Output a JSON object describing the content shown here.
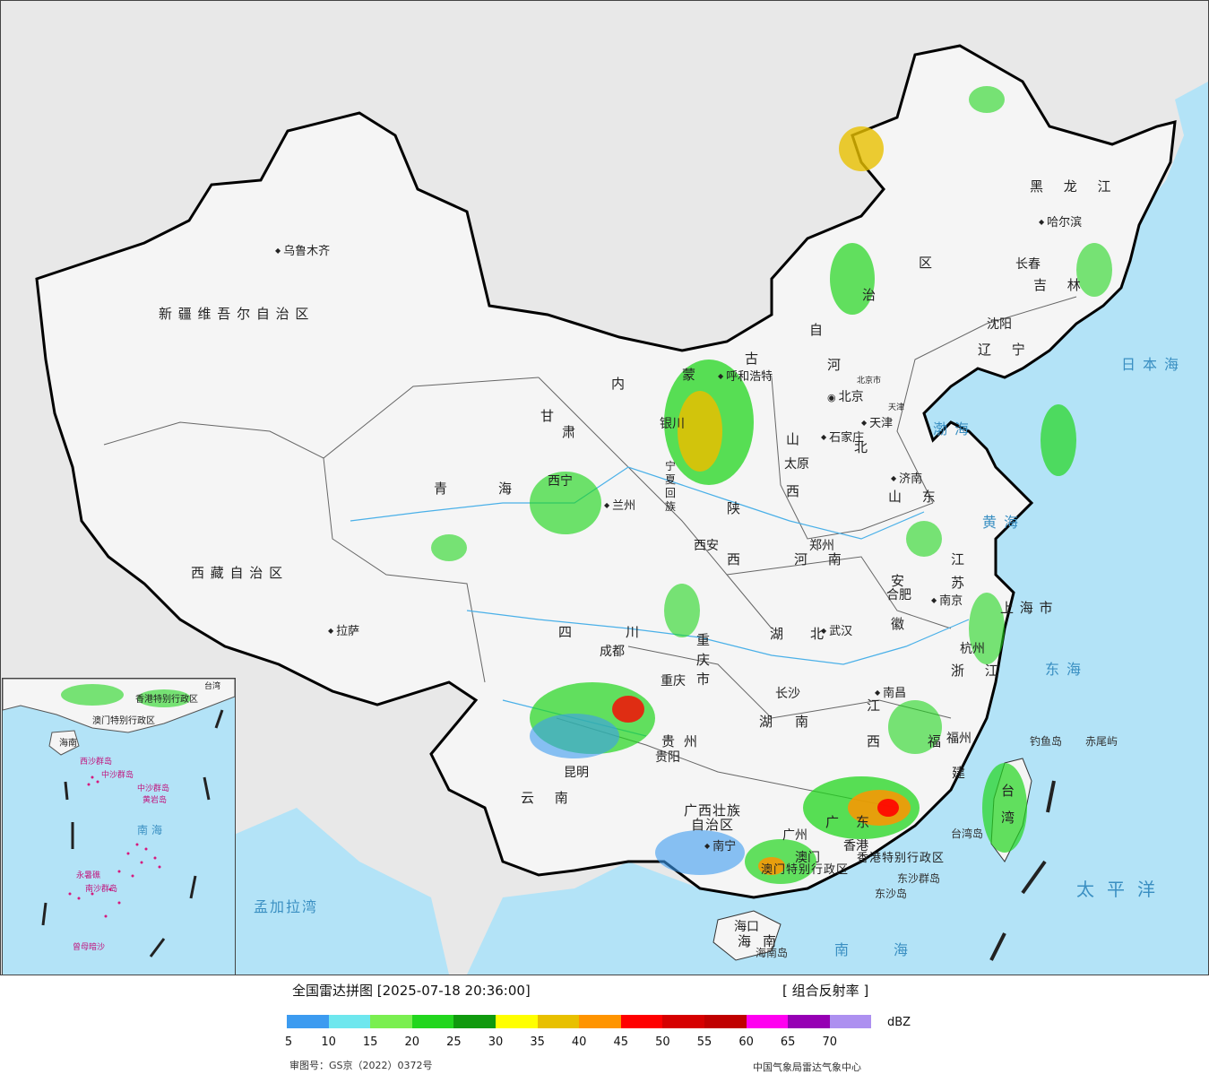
{
  "cities": [
    {
      "id": "urumqi",
      "name": "乌鲁木齐"
    },
    {
      "id": "lhasa",
      "name": "拉萨"
    },
    {
      "id": "hohhot",
      "name": "呼和浩特"
    },
    {
      "id": "beijing",
      "name": "北京"
    },
    {
      "id": "beijing-city",
      "name": "北京市"
    },
    {
      "id": "tianjin",
      "name": "天津"
    },
    {
      "id": "tianjin-city",
      "name": "天津"
    },
    {
      "id": "shijiazhuang",
      "name": "石家庄"
    },
    {
      "id": "taiyuan",
      "name": "太原"
    },
    {
      "id": "jinan",
      "name": "济南"
    },
    {
      "id": "yinchuan",
      "name": "银川"
    },
    {
      "id": "lanzhou",
      "name": "兰州"
    },
    {
      "id": "xining",
      "name": "西宁"
    },
    {
      "id": "xian",
      "name": "西安"
    },
    {
      "id": "zhengzhou",
      "name": "郑州"
    },
    {
      "id": "hefei",
      "name": "合肥"
    },
    {
      "id": "nanjing",
      "name": "南京"
    },
    {
      "id": "shanghai",
      "name": "上海市"
    },
    {
      "id": "hangzhou",
      "name": "杭州"
    },
    {
      "id": "wuhan",
      "name": "武汉"
    },
    {
      "id": "chengdu",
      "name": "成都"
    },
    {
      "id": "chongqing",
      "name": "重庆"
    },
    {
      "id": "changsha",
      "name": "长沙"
    },
    {
      "id": "nanchang",
      "name": "南昌"
    },
    {
      "id": "fuzhou",
      "name": "福州"
    },
    {
      "id": "guiyang",
      "name": "贵阳"
    },
    {
      "id": "kunming",
      "name": "昆明"
    },
    {
      "id": "nanning",
      "name": "南宁"
    },
    {
      "id": "guangzhou",
      "name": "广州"
    },
    {
      "id": "hongkong",
      "name": "香港"
    },
    {
      "id": "macao",
      "name": "澳门"
    },
    {
      "id": "haikou",
      "name": "海口"
    },
    {
      "id": "harbin",
      "name": "哈尔滨"
    },
    {
      "id": "changchun",
      "name": "长春"
    },
    {
      "id": "shenyang",
      "name": "沈阳"
    }
  ],
  "provinces": [
    {
      "id": "xinjiang",
      "name": "新 疆 维 吾 尔 自 治 区"
    },
    {
      "id": "tibet",
      "name": "西 藏 自 治 区"
    },
    {
      "id": "qinghai",
      "name": "青"
    },
    {
      "id": "qinghai2",
      "name": "海"
    },
    {
      "id": "gansu",
      "name": "甘"
    },
    {
      "id": "gansu2",
      "name": "肃"
    },
    {
      "id": "nmg1",
      "name": "内"
    },
    {
      "id": "nmg2",
      "name": "蒙"
    },
    {
      "id": "nmg3",
      "name": "古"
    },
    {
      "id": "nmg4",
      "name": "自"
    },
    {
      "id": "nmg5",
      "name": "治"
    },
    {
      "id": "nmg6",
      "name": "区"
    },
    {
      "id": "ningxia1",
      "name": "宁"
    },
    {
      "id": "ningxia2",
      "name": "夏"
    },
    {
      "id": "ningxia3",
      "name": "回"
    },
    {
      "id": "ningxia4",
      "name": "族"
    },
    {
      "id": "shaanxi",
      "name": "陕"
    },
    {
      "id": "shaanxi2",
      "name": "西"
    },
    {
      "id": "shanxi",
      "name": "山"
    },
    {
      "id": "shanxi2",
      "name": "西"
    },
    {
      "id": "hebei",
      "name": "河"
    },
    {
      "id": "hebei2",
      "name": "北"
    },
    {
      "id": "shandong",
      "name": "山 东"
    },
    {
      "id": "henan",
      "name": "河 南"
    },
    {
      "id": "jiangsu",
      "name": "江"
    },
    {
      "id": "jiangsu2",
      "name": "苏"
    },
    {
      "id": "anhui",
      "name": "安"
    },
    {
      "id": "anhui2",
      "name": "徽"
    },
    {
      "id": "sichuan",
      "name": "四"
    },
    {
      "id": "sichuan2",
      "name": "川"
    },
    {
      "id": "chongqing-city",
      "name": "重 庆 市"
    },
    {
      "id": "hubei",
      "name": "湖"
    },
    {
      "id": "hubei2",
      "name": "北"
    },
    {
      "id": "hunan",
      "name": "湖"
    },
    {
      "id": "hunan2",
      "name": "南"
    },
    {
      "id": "jiangxi",
      "name": "江"
    },
    {
      "id": "jiangxi2",
      "name": "西"
    },
    {
      "id": "zhejiang",
      "name": "浙 江"
    },
    {
      "id": "fujian",
      "name": "福"
    },
    {
      "id": "fujian2",
      "name": "建"
    },
    {
      "id": "guizhou",
      "name": "贵"
    },
    {
      "id": "guizhou2",
      "name": "州"
    },
    {
      "id": "yunnan",
      "name": "云 南"
    },
    {
      "id": "guangxi1",
      "name": "广西壮族"
    },
    {
      "id": "guangxi2",
      "name": "自治区"
    },
    {
      "id": "guangdong",
      "name": "广"
    },
    {
      "id": "guangdong2",
      "name": "东"
    },
    {
      "id": "hainan",
      "name": "海"
    },
    {
      "id": "hainan2",
      "name": "南"
    },
    {
      "id": "heilongjiang",
      "name": "黑 龙 江"
    },
    {
      "id": "jilin",
      "name": "吉 林"
    },
    {
      "id": "liaoning",
      "name": "辽 宁"
    },
    {
      "id": "taiwan",
      "name": "台"
    },
    {
      "id": "taiwan2",
      "name": "湾"
    },
    {
      "id": "hk-sar",
      "name": "香港特别行政区"
    },
    {
      "id": "macao-sar",
      "name": "澳门特别行政区"
    },
    {
      "id": "shanghai-city",
      "name": "上 海 市"
    }
  ],
  "seas": [
    {
      "id": "japan-sea",
      "name": "日本海"
    },
    {
      "id": "bohai",
      "name": "渤海"
    },
    {
      "id": "yellow-sea",
      "name": "黄海"
    },
    {
      "id": "east-sea",
      "name": "东海"
    },
    {
      "id": "pacific",
      "name": "太平洋"
    },
    {
      "id": "south-sea",
      "name": "南海"
    },
    {
      "id": "bengal",
      "name": "孟加拉湾"
    }
  ],
  "islands": [
    {
      "id": "diaoyu",
      "name": "钓鱼岛"
    },
    {
      "id": "chiwei",
      "name": "赤尾屿"
    },
    {
      "id": "taiwan-island",
      "name": "台湾岛"
    },
    {
      "id": "dongsha",
      "name": "东沙群岛"
    },
    {
      "id": "dongsha-dao",
      "name": "东沙岛"
    },
    {
      "id": "hainan-island",
      "name": "海南岛"
    }
  ],
  "inset": {
    "sea": "南海",
    "labels": [
      {
        "id": "in-taiwan",
        "name": "台湾"
      },
      {
        "id": "in-hk",
        "name": "香港特别行政区"
      },
      {
        "id": "in-macao",
        "name": "澳门特别行政区"
      },
      {
        "id": "in-hainan",
        "name": "海南"
      },
      {
        "id": "in-xisha",
        "name": "西沙群岛"
      },
      {
        "id": "in-zhongsha",
        "name": "中沙群岛"
      },
      {
        "id": "in-huangyan",
        "name": "黄岩岛"
      },
      {
        "id": "in-nansha",
        "name": "南沙群岛"
      },
      {
        "id": "in-yongshu",
        "name": "永暑礁"
      },
      {
        "id": "in-zengmu",
        "name": "曾母暗沙"
      },
      {
        "id": "in-zhongsha2",
        "name": "中沙群岛"
      }
    ]
  },
  "legend": {
    "title": "全国雷达拼图 [2025-07-18 20:36:00]",
    "product": "[ 组合反射率 ]",
    "unit": "dBZ",
    "ticks": [
      "5",
      "10",
      "15",
      "20",
      "25",
      "30",
      "35",
      "40",
      "45",
      "50",
      "55",
      "60",
      "65",
      "70"
    ],
    "colors": [
      "#3c9bf0",
      "#6ee7ee",
      "#7aef50",
      "#22d61e",
      "#109a0e",
      "#ffff00",
      "#e8c000",
      "#ff9400",
      "#ff0000",
      "#d60000",
      "#c00000",
      "#ff00f0",
      "#9600b4",
      "#ad90f0"
    ],
    "approval": "审图号：GS京（2022）0372号",
    "source": "中国气象局雷达气象中心"
  }
}
